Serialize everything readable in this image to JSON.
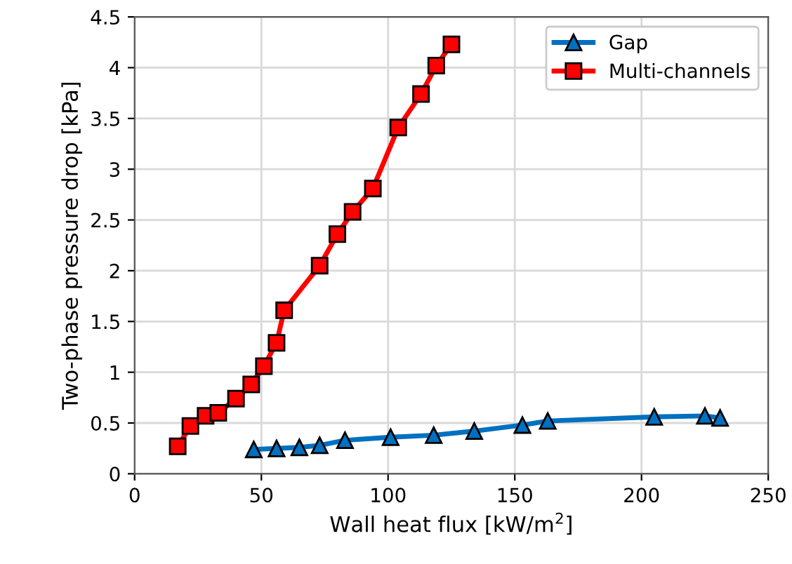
{
  "chart_data": {
    "type": "line",
    "xlabel": "Wall heat flux [kW/m$^{2}$]",
    "ylabel": "Two-phase pressure drop [kPa]",
    "xlim": [
      0,
      250
    ],
    "xticks": [
      0,
      50,
      100,
      150,
      200,
      250
    ],
    "ylim": [
      0,
      4.5
    ],
    "yticks": [
      0,
      0.5,
      1,
      1.5,
      2,
      2.5,
      3,
      3.5,
      4,
      4.5
    ],
    "grid": true,
    "legend": "top right",
    "series": [
      {
        "name": "Gap",
        "color": "#0070c0",
        "marker": "triangle",
        "x": [
          47,
          56,
          65,
          73,
          83,
          101,
          118,
          134,
          153,
          163,
          205,
          225,
          231
        ],
        "values": [
          0.24,
          0.25,
          0.26,
          0.28,
          0.33,
          0.36,
          0.38,
          0.42,
          0.48,
          0.52,
          0.56,
          0.57,
          0.55
        ]
      },
      {
        "name": "Multi-channels",
        "color": "#ff0000",
        "marker": "square",
        "x": [
          17,
          22,
          28,
          33,
          40,
          46,
          51,
          56,
          59,
          73,
          80,
          86,
          94,
          104,
          113,
          119,
          125
        ],
        "values": [
          0.27,
          0.47,
          0.57,
          0.6,
          0.74,
          0.88,
          1.06,
          1.29,
          1.61,
          2.05,
          2.36,
          2.58,
          2.81,
          3.41,
          3.74,
          4.02,
          4.23
        ]
      }
    ]
  }
}
